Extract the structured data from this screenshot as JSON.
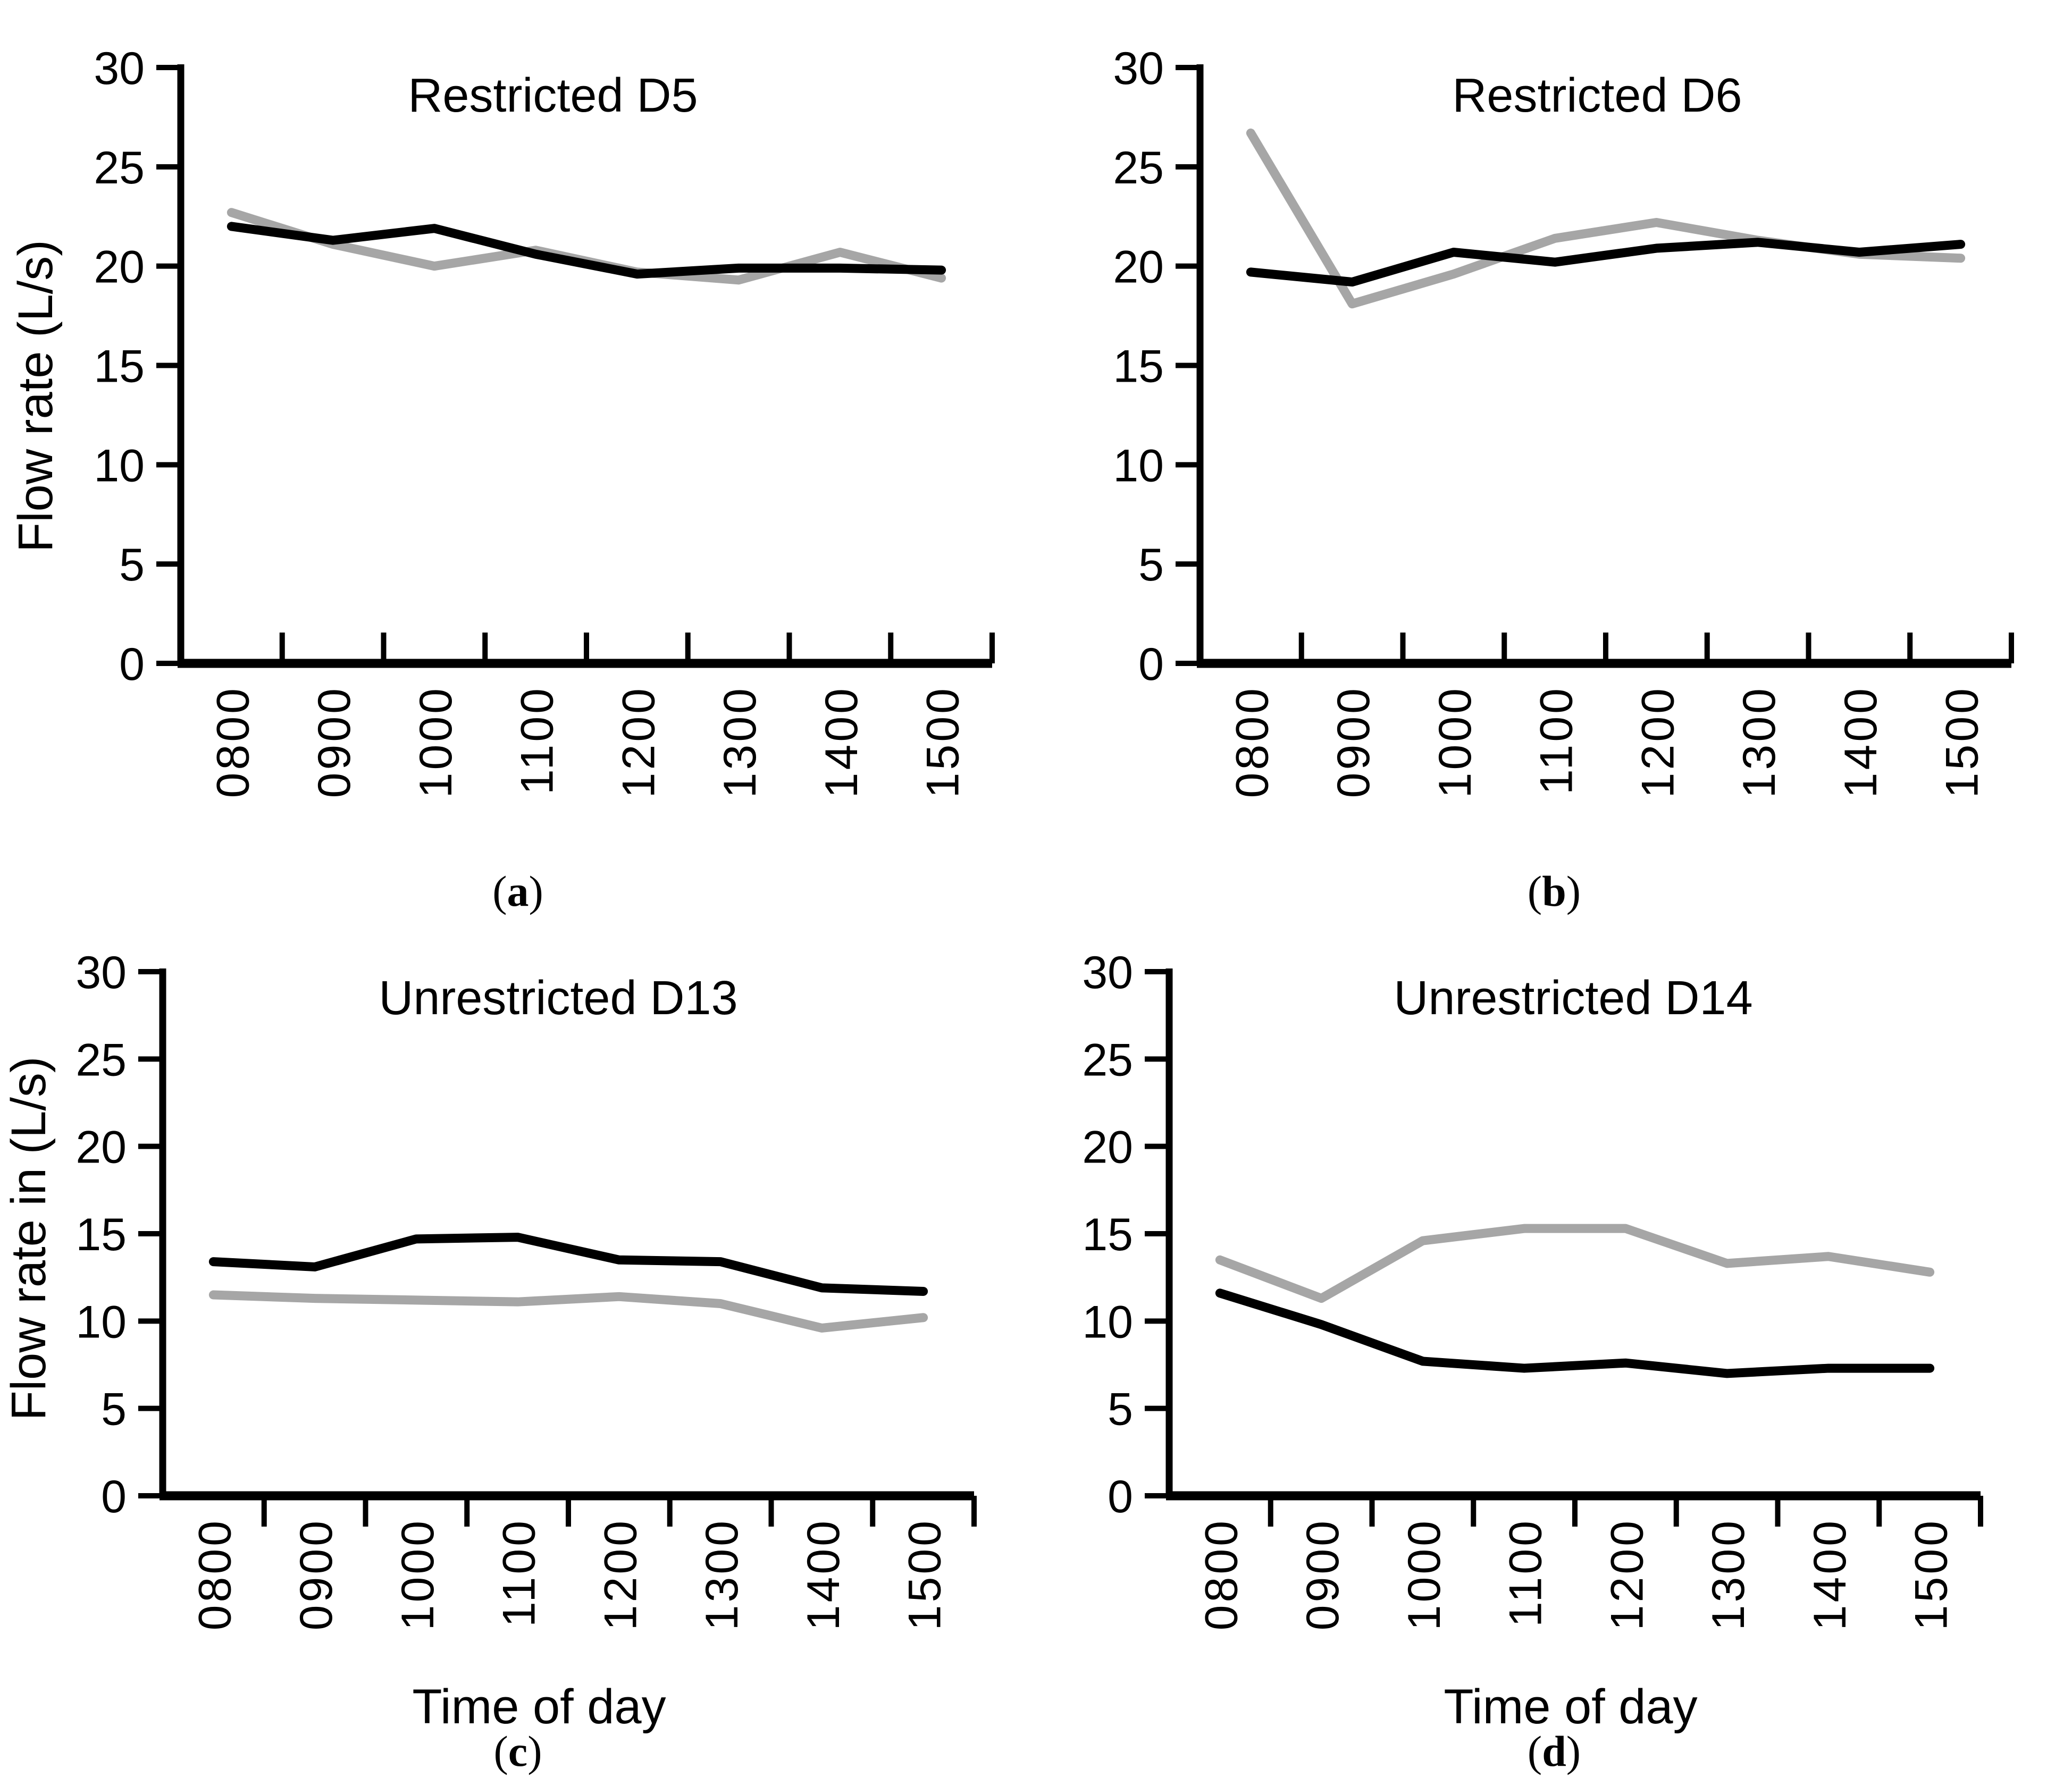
{
  "figure": {
    "background": "#ffffff",
    "line_colors": {
      "black": "#000000",
      "gray": "#a6a6a6"
    }
  },
  "panels": [
    {
      "id": "a",
      "sublabel_open": "(",
      "sublabel_letter": "a",
      "sublabel_close": ")"
    },
    {
      "id": "b",
      "sublabel_open": "(",
      "sublabel_letter": "b",
      "sublabel_close": ")"
    },
    {
      "id": "c",
      "sublabel_open": "(",
      "sublabel_letter": "c",
      "sublabel_close": ")"
    },
    {
      "id": "d",
      "sublabel_open": "(",
      "sublabel_letter": "d",
      "sublabel_close": ")"
    }
  ],
  "chart_data": [
    {
      "type": "line",
      "panel": "a",
      "title": "Restricted D5",
      "xlabel": "",
      "ylabel": "Flow rate (L/s)",
      "ylim": [
        0,
        30
      ],
      "yticks": [
        0,
        5,
        10,
        15,
        20,
        25,
        30
      ],
      "grid": false,
      "legend": "none",
      "categories": [
        "0800",
        "0900",
        "1000",
        "1100",
        "1200",
        "1300",
        "1400",
        "1500"
      ],
      "series": [
        {
          "name": "black",
          "color": "#000000",
          "values": [
            22.0,
            21.3,
            21.9,
            20.6,
            19.6,
            19.9,
            19.9,
            19.8
          ]
        },
        {
          "name": "gray",
          "color": "#a6a6a6",
          "values": [
            22.7,
            21.1,
            20.0,
            20.8,
            19.7,
            19.3,
            20.7,
            19.4
          ]
        }
      ]
    },
    {
      "type": "line",
      "panel": "b",
      "title": "Restricted D6",
      "xlabel": "",
      "ylabel": "",
      "ylim": [
        0,
        30
      ],
      "yticks": [
        0,
        5,
        10,
        15,
        20,
        25,
        30
      ],
      "grid": false,
      "legend": "none",
      "categories": [
        "0800",
        "0900",
        "1000",
        "1100",
        "1200",
        "1300",
        "1400",
        "1500"
      ],
      "series": [
        {
          "name": "black",
          "color": "#000000",
          "values": [
            19.7,
            19.2,
            20.7,
            20.2,
            20.9,
            21.2,
            20.7,
            21.1
          ]
        },
        {
          "name": "gray",
          "color": "#a6a6a6",
          "values": [
            26.7,
            18.1,
            19.6,
            21.4,
            22.2,
            21.3,
            20.6,
            20.4
          ]
        }
      ]
    },
    {
      "type": "line",
      "panel": "c",
      "title": "Unrestricted D13",
      "xlabel": "Time of day",
      "ylabel": "Flow rate in (L/s)",
      "ylim": [
        0,
        30
      ],
      "yticks": [
        0,
        5,
        10,
        15,
        20,
        25,
        30
      ],
      "grid": false,
      "legend": "none",
      "categories": [
        "0800",
        "0900",
        "1000",
        "1100",
        "1200",
        "1300",
        "1400",
        "1500"
      ],
      "series": [
        {
          "name": "black",
          "color": "#000000",
          "values": [
            13.4,
            13.1,
            14.7,
            14.8,
            13.5,
            13.4,
            11.9,
            11.7
          ]
        },
        {
          "name": "gray",
          "color": "#a6a6a6",
          "values": [
            11.5,
            11.3,
            11.2,
            11.1,
            11.4,
            11.0,
            9.6,
            10.2
          ]
        }
      ]
    },
    {
      "type": "line",
      "panel": "d",
      "title": "Unrestricted D14",
      "xlabel": "Time of day",
      "ylabel": "",
      "ylim": [
        0,
        30
      ],
      "yticks": [
        0,
        5,
        10,
        15,
        20,
        25,
        30
      ],
      "grid": false,
      "legend": "none",
      "categories": [
        "0800",
        "0900",
        "1000",
        "1100",
        "1200",
        "1300",
        "1400",
        "1500"
      ],
      "series": [
        {
          "name": "black",
          "color": "#000000",
          "values": [
            11.6,
            9.8,
            7.7,
            7.3,
            7.6,
            7.0,
            7.3,
            7.3
          ]
        },
        {
          "name": "gray",
          "color": "#a6a6a6",
          "values": [
            13.5,
            11.3,
            14.6,
            15.3,
            15.3,
            13.3,
            13.7,
            12.8
          ]
        }
      ]
    }
  ]
}
